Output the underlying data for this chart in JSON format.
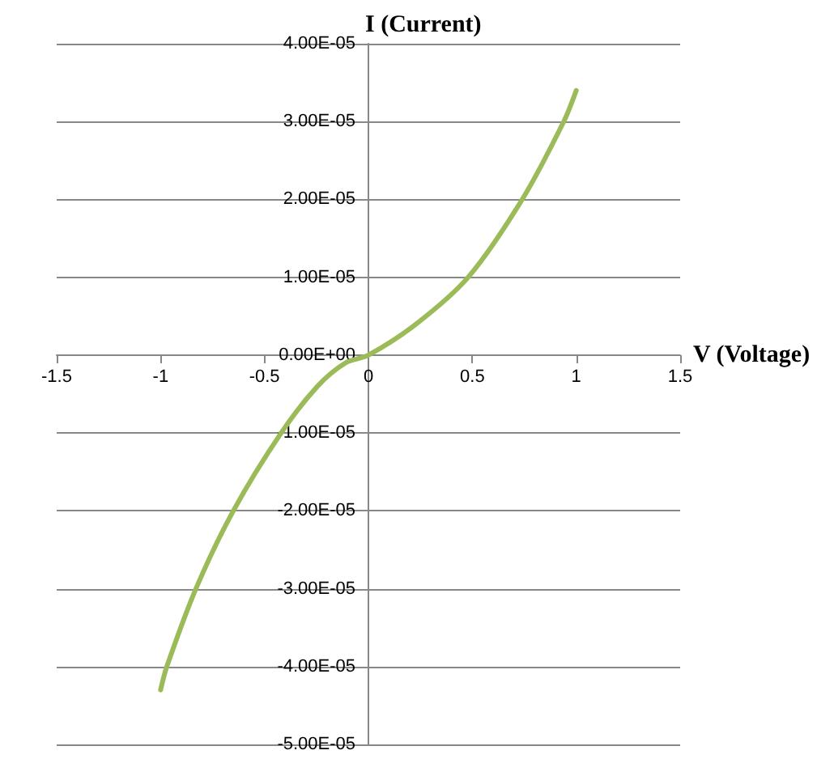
{
  "chart_data": {
    "type": "line",
    "xlabel": "V (Voltage)",
    "ylabel": "I (Current)",
    "x": [
      -1.0,
      -0.97,
      -0.83,
      -0.65,
      -0.42,
      -0.245,
      -0.11,
      0,
      0.23,
      0.48,
      0.74,
      0.94,
      1.0
    ],
    "series": [
      {
        "color": "#9bbb59",
        "values": [
          -4.3e-05,
          -4e-05,
          -3e-05,
          -2e-05,
          -1e-05,
          -4e-06,
          -1e-06,
          0,
          4e-06,
          1e-05,
          2e-05,
          3e-05,
          3.4e-05
        ]
      }
    ],
    "xlim": [
      -1.5,
      1.5
    ],
    "xticks": [
      -1.5,
      -1,
      -0.5,
      0,
      0.5,
      1,
      1.5
    ],
    "ylim": [
      -5e-05,
      4e-05
    ],
    "yticks": [
      {
        "value": -5e-05,
        "label": "-5.00E-05"
      },
      {
        "value": -4e-05,
        "label": "-4.00E-05"
      },
      {
        "value": -3e-05,
        "label": "-3.00E-05"
      },
      {
        "value": -2e-05,
        "label": "-2.00E-05"
      },
      {
        "value": -1e-05,
        "label": "-1.00E-05"
      },
      {
        "value": 0,
        "label": "0.00E+00"
      },
      {
        "value": 1e-05,
        "label": "1.00E-05"
      },
      {
        "value": 2e-05,
        "label": "2.00E-05"
      },
      {
        "value": 3e-05,
        "label": "3.00E-05"
      },
      {
        "value": 4e-05,
        "label": "4.00E-05"
      }
    ],
    "grid": "y",
    "marker": "none",
    "line_style": "solid"
  }
}
